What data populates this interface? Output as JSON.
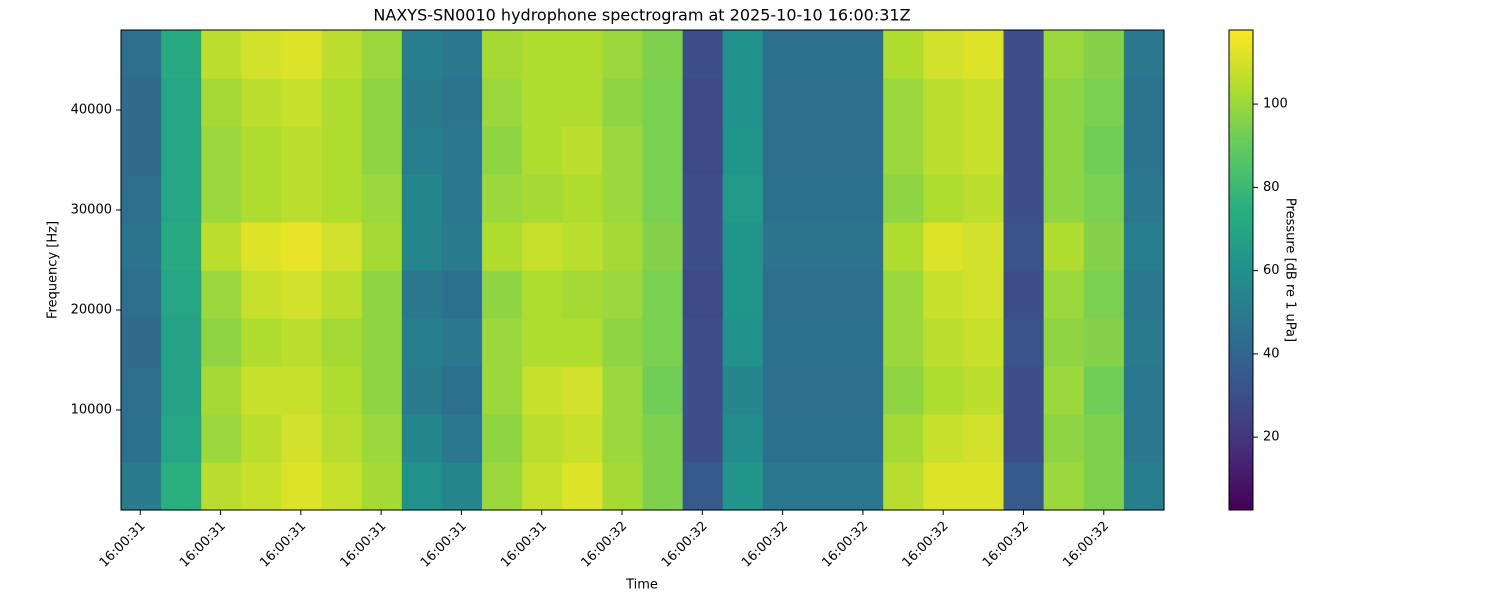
{
  "chart_data": {
    "type": "heatmap",
    "title": "NAXYS-SN0010 hydrophone spectrogram at 2025-10-10 16:00:31Z",
    "x_label": "Time",
    "y_label": "Frequency [Hz]",
    "colorbar_label": "Pressure [dB re 1 uPa]",
    "colormap": "viridis",
    "xlim": [
      31.376,
      32.675
    ],
    "xticks": [
      {
        "value": 31.4,
        "label": "16:00:31"
      },
      {
        "value": 31.5,
        "label": "16:00:31"
      },
      {
        "value": 31.6,
        "label": "16:00:31"
      },
      {
        "value": 31.7,
        "label": "16:00:31"
      },
      {
        "value": 31.8,
        "label": "16:00:31"
      },
      {
        "value": 31.9,
        "label": "16:00:31"
      },
      {
        "value": 32.0,
        "label": "16:00:32"
      },
      {
        "value": 32.1,
        "label": "16:00:32"
      },
      {
        "value": 32.2,
        "label": "16:00:32"
      },
      {
        "value": 32.3,
        "label": "16:00:32"
      },
      {
        "value": 32.4,
        "label": "16:00:32"
      },
      {
        "value": 32.5,
        "label": "16:00:32"
      },
      {
        "value": 32.6,
        "label": "16:00:32"
      }
    ],
    "ylim": [
      0,
      48000
    ],
    "yticks": [
      10000,
      20000,
      30000,
      40000
    ],
    "clim": [
      2.5,
      117.8
    ],
    "cticks": [
      20,
      40,
      60,
      80,
      100
    ],
    "z": [
      [
        50,
        75,
        105,
        108,
        112,
        108,
        102,
        60,
        55,
        100,
        108,
        112,
        102,
        95,
        35,
        62,
        48,
        48,
        48,
        105,
        112,
        112,
        35,
        100,
        95,
        52
      ],
      [
        45,
        70,
        100,
        106,
        110,
        105,
        100,
        55,
        48,
        98,
        106,
        108,
        100,
        95,
        30,
        58,
        45,
        45,
        45,
        102,
        108,
        110,
        30,
        98,
        95,
        48
      ],
      [
        44,
        68,
        102,
        108,
        108,
        104,
        98,
        50,
        45,
        100,
        108,
        110,
        100,
        92,
        30,
        55,
        44,
        44,
        44,
        98,
        104,
        106,
        30,
        100,
        92,
        48
      ],
      [
        42,
        68,
        98,
        104,
        106,
        102,
        98,
        52,
        48,
        100,
        104,
        104,
        98,
        94,
        30,
        60,
        45,
        45,
        45,
        100,
        106,
        108,
        32,
        98,
        96,
        50
      ],
      [
        44,
        70,
        100,
        108,
        110,
        106,
        98,
        48,
        45,
        98,
        104,
        102,
        100,
        94,
        28,
        62,
        44,
        44,
        44,
        100,
        108,
        110,
        30,
        100,
        94,
        48
      ],
      [
        46,
        72,
        106,
        112,
        114,
        110,
        102,
        55,
        50,
        104,
        108,
        106,
        102,
        96,
        30,
        62,
        46,
        46,
        46,
        104,
        112,
        110,
        32,
        104,
        96,
        52
      ],
      [
        44,
        70,
        100,
        104,
        106,
        104,
        100,
        55,
        48,
        100,
        102,
        104,
        100,
        94,
        30,
        64,
        45,
        45,
        45,
        98,
        104,
        106,
        30,
        98,
        94,
        48
      ],
      [
        42,
        70,
        100,
        104,
        106,
        104,
        98,
        52,
        48,
        98,
        104,
        106,
        100,
        94,
        28,
        62,
        44,
        44,
        44,
        100,
        106,
        108,
        30,
        98,
        92,
        46
      ],
      [
        42,
        70,
        102,
        106,
        108,
        104,
        98,
        50,
        46,
        100,
        104,
        104,
        98,
        94,
        28,
        60,
        44,
        44,
        44,
        100,
        106,
        108,
        30,
        98,
        94,
        46
      ],
      [
        44,
        72,
        106,
        110,
        112,
        106,
        100,
        52,
        48,
        102,
        104,
        104,
        100,
        95,
        30,
        60,
        45,
        45,
        45,
        104,
        110,
        112,
        30,
        100,
        96,
        48
      ]
    ]
  }
}
